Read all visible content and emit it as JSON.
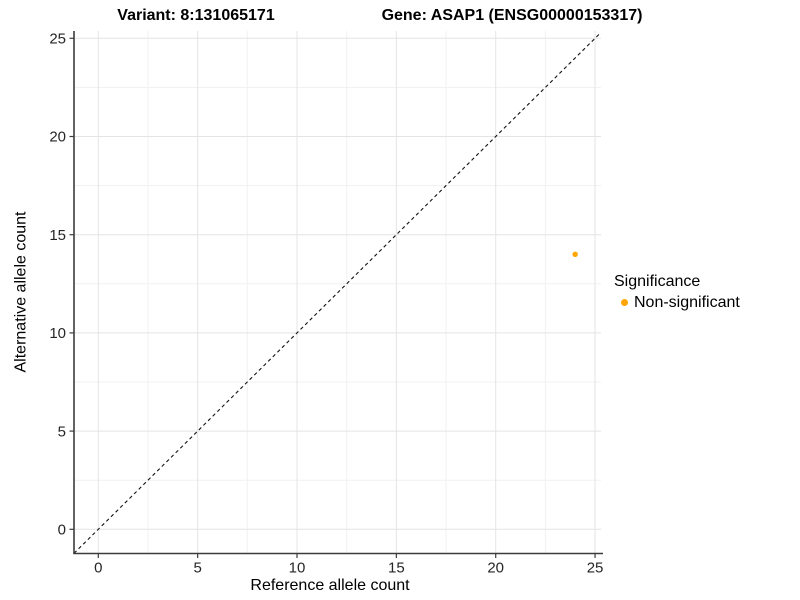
{
  "chart_data": {
    "type": "scatter",
    "title_left": "Variant: 8:131065171",
    "title_right": "Gene: ASAP1 (ENSG00000153317)",
    "xlabel": "Reference allele count",
    "ylabel": "Alternative allele count",
    "xlim": [
      -1.25,
      26.25
    ],
    "ylim": [
      -1.25,
      26.25
    ],
    "xticks": [
      0,
      5,
      10,
      15,
      20,
      25
    ],
    "yticks": [
      0,
      5,
      10,
      15,
      20,
      25
    ],
    "minor_ticks": [
      2.5,
      7.5,
      12.5,
      17.5,
      22.5
    ],
    "grid": true,
    "identity_line": {
      "equation": "y = x",
      "style": "dashed",
      "color": "#111111"
    },
    "series": [
      {
        "name": "Non-significant",
        "color": "#FFA500",
        "points": [
          {
            "x": 24,
            "y": 14
          }
        ]
      }
    ],
    "legend": {
      "title": "Significance",
      "position": "right",
      "entries": [
        {
          "label": "Non-significant",
          "color": "#FFA500"
        }
      ]
    },
    "colors": {
      "background": "#ffffff",
      "grid_major": "#e4e4e4",
      "grid_minor": "#f1f1f1",
      "axis_line": "#3c3c3c",
      "tick_label": "#262626",
      "point": "#FFA500"
    }
  }
}
